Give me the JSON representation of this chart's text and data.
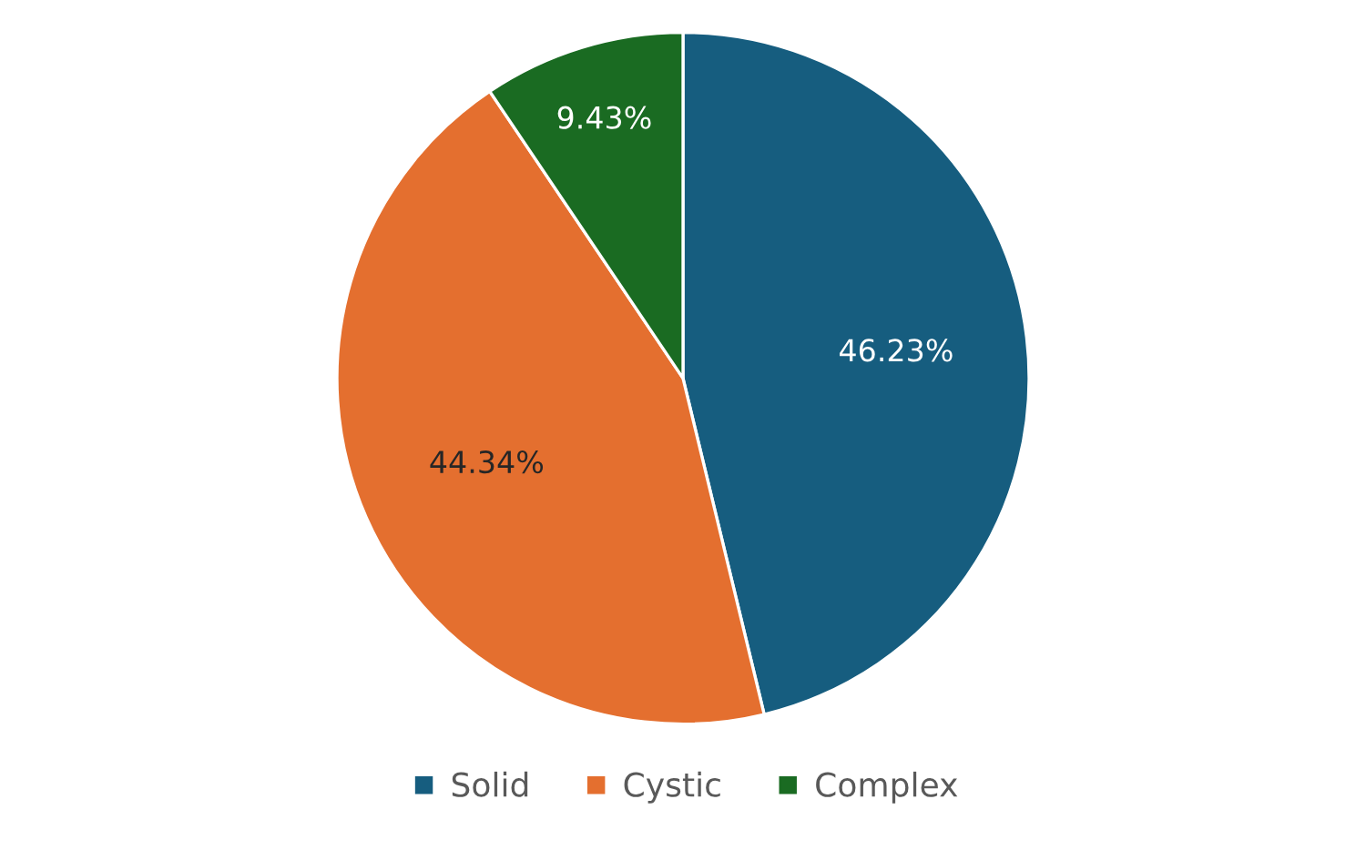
{
  "chart_data": {
    "type": "pie",
    "categories": [
      "Solid",
      "Cystic",
      "Complex"
    ],
    "values": [
      46.23,
      44.34,
      9.43
    ],
    "colors": [
      "#165d7f",
      "#e46f2f",
      "#1a6b22"
    ],
    "value_labels": [
      "46.23%",
      "44.34%",
      "9.43%"
    ],
    "legend": "bottom"
  }
}
